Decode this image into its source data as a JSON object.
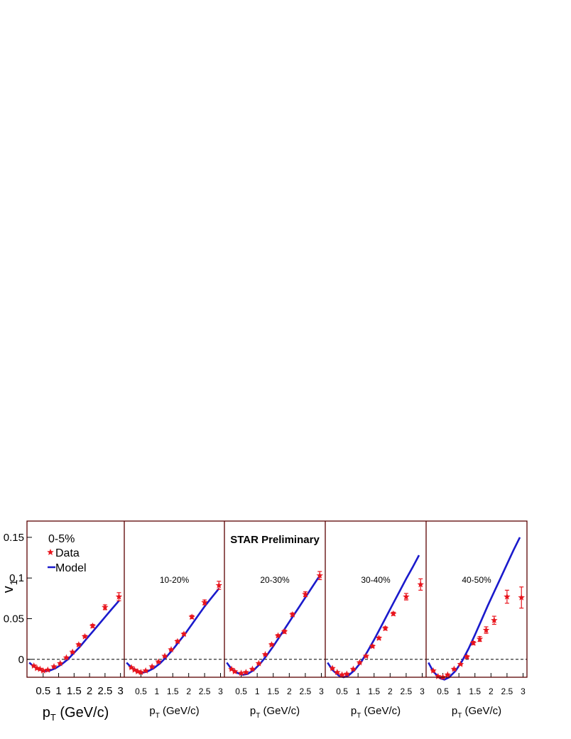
{
  "chart_data": {
    "type": "scatter",
    "ylabel": "v",
    "ylabel_sub": "1",
    "xlabel": "p",
    "xlabel_sub": "T",
    "xlabel_unit": " (GeV/c)",
    "ylim": [
      -0.022,
      0.17
    ],
    "xlim": [
      0,
      3.1
    ],
    "x_ticks": [
      "0.5",
      "1",
      "1.5",
      "2",
      "2.5",
      "3"
    ],
    "y_ticks": [
      "0",
      "0.05",
      "0.1",
      "0.15"
    ],
    "title": "STAR Preliminary",
    "legend": {
      "data_label": "Data",
      "model_label": "Model"
    },
    "colors": {
      "data": "#e8141c",
      "model": "#1a1acc",
      "frame": "#5a0000"
    },
    "panels": [
      {
        "label": "0-5%",
        "data": [
          {
            "x": 0.2,
            "y": -0.008,
            "err": 0.001
          },
          {
            "x": 0.3,
            "y": -0.011,
            "err": 0.001
          },
          {
            "x": 0.4,
            "y": -0.012,
            "err": 0.001
          },
          {
            "x": 0.5,
            "y": -0.014,
            "err": 0.001
          },
          {
            "x": 0.65,
            "y": -0.013,
            "err": 0.001
          },
          {
            "x": 0.85,
            "y": -0.009,
            "err": 0.001
          },
          {
            "x": 1.05,
            "y": -0.005,
            "err": 0.001
          },
          {
            "x": 1.25,
            "y": 0.002,
            "err": 0.001
          },
          {
            "x": 1.45,
            "y": 0.009,
            "err": 0.001
          },
          {
            "x": 1.65,
            "y": 0.018,
            "err": 0.0015
          },
          {
            "x": 1.85,
            "y": 0.028,
            "err": 0.0015
          },
          {
            "x": 2.1,
            "y": 0.041,
            "err": 0.002
          },
          {
            "x": 2.5,
            "y": 0.064,
            "err": 0.003
          },
          {
            "x": 2.95,
            "y": 0.077,
            "err": 0.005
          }
        ],
        "model": [
          [
            0.05,
            -0.004
          ],
          [
            0.2,
            -0.009
          ],
          [
            0.4,
            -0.013
          ],
          [
            0.55,
            -0.0145
          ],
          [
            0.7,
            -0.014
          ],
          [
            0.9,
            -0.011
          ],
          [
            1.1,
            -0.006
          ],
          [
            1.3,
            0.0
          ],
          [
            1.5,
            0.008
          ],
          [
            1.7,
            0.016
          ],
          [
            1.9,
            0.025
          ],
          [
            2.1,
            0.034
          ],
          [
            2.3,
            0.043
          ],
          [
            2.5,
            0.052
          ],
          [
            2.7,
            0.061
          ],
          [
            2.95,
            0.072
          ]
        ]
      },
      {
        "label": "10-20%",
        "data": [
          {
            "x": 0.2,
            "y": -0.01,
            "err": 0.001
          },
          {
            "x": 0.3,
            "y": -0.013,
            "err": 0.001
          },
          {
            "x": 0.4,
            "y": -0.015,
            "err": 0.001
          },
          {
            "x": 0.5,
            "y": -0.016,
            "err": 0.001
          },
          {
            "x": 0.65,
            "y": -0.014,
            "err": 0.001
          },
          {
            "x": 0.85,
            "y": -0.009,
            "err": 0.001
          },
          {
            "x": 1.05,
            "y": -0.003,
            "err": 0.001
          },
          {
            "x": 1.25,
            "y": 0.004,
            "err": 0.001
          },
          {
            "x": 1.45,
            "y": 0.012,
            "err": 0.001
          },
          {
            "x": 1.65,
            "y": 0.022,
            "err": 0.0015
          },
          {
            "x": 1.85,
            "y": 0.031,
            "err": 0.0015
          },
          {
            "x": 2.1,
            "y": 0.052,
            "err": 0.002
          },
          {
            "x": 2.5,
            "y": 0.07,
            "err": 0.003
          },
          {
            "x": 2.95,
            "y": 0.091,
            "err": 0.005
          }
        ],
        "model": [
          [
            0.05,
            -0.004
          ],
          [
            0.2,
            -0.01
          ],
          [
            0.4,
            -0.015
          ],
          [
            0.55,
            -0.0165
          ],
          [
            0.7,
            -0.015
          ],
          [
            0.9,
            -0.011
          ],
          [
            1.1,
            -0.005
          ],
          [
            1.3,
            0.003
          ],
          [
            1.5,
            0.012
          ],
          [
            1.7,
            0.022
          ],
          [
            1.9,
            0.032
          ],
          [
            2.1,
            0.043
          ],
          [
            2.3,
            0.054
          ],
          [
            2.5,
            0.065
          ],
          [
            2.7,
            0.075
          ],
          [
            2.95,
            0.087
          ]
        ]
      },
      {
        "label": "20-30%",
        "data": [
          {
            "x": 0.2,
            "y": -0.012,
            "err": 0.001
          },
          {
            "x": 0.3,
            "y": -0.015,
            "err": 0.001
          },
          {
            "x": 0.5,
            "y": -0.017,
            "err": 0.001
          },
          {
            "x": 0.65,
            "y": -0.016,
            "err": 0.001
          },
          {
            "x": 0.85,
            "y": -0.012,
            "err": 0.001
          },
          {
            "x": 1.05,
            "y": -0.005,
            "err": 0.001
          },
          {
            "x": 1.25,
            "y": 0.006,
            "err": 0.001
          },
          {
            "x": 1.45,
            "y": 0.018,
            "err": 0.0015
          },
          {
            "x": 1.65,
            "y": 0.029,
            "err": 0.0015
          },
          {
            "x": 1.85,
            "y": 0.034,
            "err": 0.002
          },
          {
            "x": 2.1,
            "y": 0.055,
            "err": 0.002
          },
          {
            "x": 2.5,
            "y": 0.08,
            "err": 0.003
          },
          {
            "x": 2.95,
            "y": 0.103,
            "err": 0.005
          }
        ],
        "model": [
          [
            0.05,
            -0.004
          ],
          [
            0.2,
            -0.012
          ],
          [
            0.4,
            -0.017
          ],
          [
            0.55,
            -0.019
          ],
          [
            0.7,
            -0.018
          ],
          [
            0.9,
            -0.013
          ],
          [
            1.1,
            -0.005
          ],
          [
            1.3,
            0.005
          ],
          [
            1.5,
            0.016
          ],
          [
            1.7,
            0.028
          ],
          [
            1.9,
            0.04
          ],
          [
            2.1,
            0.052
          ],
          [
            2.3,
            0.064
          ],
          [
            2.5,
            0.076
          ],
          [
            2.7,
            0.088
          ],
          [
            2.95,
            0.103
          ]
        ]
      },
      {
        "label": "30-40%",
        "data": [
          {
            "x": 0.2,
            "y": -0.011,
            "err": 0.001
          },
          {
            "x": 0.35,
            "y": -0.016,
            "err": 0.001
          },
          {
            "x": 0.5,
            "y": -0.019,
            "err": 0.001
          },
          {
            "x": 0.65,
            "y": -0.018,
            "err": 0.001
          },
          {
            "x": 0.85,
            "y": -0.012,
            "err": 0.001
          },
          {
            "x": 1.05,
            "y": -0.004,
            "err": 0.001
          },
          {
            "x": 1.25,
            "y": 0.004,
            "err": 0.001
          },
          {
            "x": 1.45,
            "y": 0.016,
            "err": 0.0015
          },
          {
            "x": 1.65,
            "y": 0.026,
            "err": 0.0015
          },
          {
            "x": 1.85,
            "y": 0.038,
            "err": 0.002
          },
          {
            "x": 2.1,
            "y": 0.056,
            "err": 0.002
          },
          {
            "x": 2.5,
            "y": 0.077,
            "err": 0.004
          },
          {
            "x": 2.95,
            "y": 0.092,
            "err": 0.007
          }
        ],
        "model": [
          [
            0.05,
            -0.004
          ],
          [
            0.2,
            -0.013
          ],
          [
            0.4,
            -0.02
          ],
          [
            0.55,
            -0.022
          ],
          [
            0.7,
            -0.02
          ],
          [
            0.9,
            -0.013
          ],
          [
            1.1,
            -0.003
          ],
          [
            1.3,
            0.01
          ],
          [
            1.5,
            0.024
          ],
          [
            1.7,
            0.039
          ],
          [
            1.9,
            0.054
          ],
          [
            2.1,
            0.069
          ],
          [
            2.3,
            0.084
          ],
          [
            2.5,
            0.099
          ],
          [
            2.7,
            0.113
          ],
          [
            2.9,
            0.128
          ]
        ]
      },
      {
        "label": "40-50%",
        "data": [
          {
            "x": 0.2,
            "y": -0.014,
            "err": 0.001
          },
          {
            "x": 0.35,
            "y": -0.021,
            "err": 0.001
          },
          {
            "x": 0.5,
            "y": -0.022,
            "err": 0.001
          },
          {
            "x": 0.65,
            "y": -0.019,
            "err": 0.001
          },
          {
            "x": 0.85,
            "y": -0.012,
            "err": 0.001
          },
          {
            "x": 1.05,
            "y": -0.006,
            "err": 0.001
          },
          {
            "x": 1.25,
            "y": 0.003,
            "err": 0.0015
          },
          {
            "x": 1.45,
            "y": 0.02,
            "err": 0.002
          },
          {
            "x": 1.65,
            "y": 0.025,
            "err": 0.003
          },
          {
            "x": 1.85,
            "y": 0.036,
            "err": 0.004
          },
          {
            "x": 2.1,
            "y": 0.048,
            "err": 0.005
          },
          {
            "x": 2.5,
            "y": 0.077,
            "err": 0.008
          },
          {
            "x": 2.95,
            "y": 0.076,
            "err": 0.013
          }
        ],
        "model": [
          [
            0.05,
            -0.004
          ],
          [
            0.2,
            -0.015
          ],
          [
            0.4,
            -0.023
          ],
          [
            0.55,
            -0.025
          ],
          [
            0.7,
            -0.022
          ],
          [
            0.9,
            -0.014
          ],
          [
            1.1,
            -0.002
          ],
          [
            1.3,
            0.013
          ],
          [
            1.5,
            0.03
          ],
          [
            1.7,
            0.048
          ],
          [
            1.9,
            0.066
          ],
          [
            2.1,
            0.083
          ],
          [
            2.3,
            0.1
          ],
          [
            2.5,
            0.117
          ],
          [
            2.7,
            0.134
          ],
          [
            2.9,
            0.15
          ]
        ]
      }
    ]
  }
}
